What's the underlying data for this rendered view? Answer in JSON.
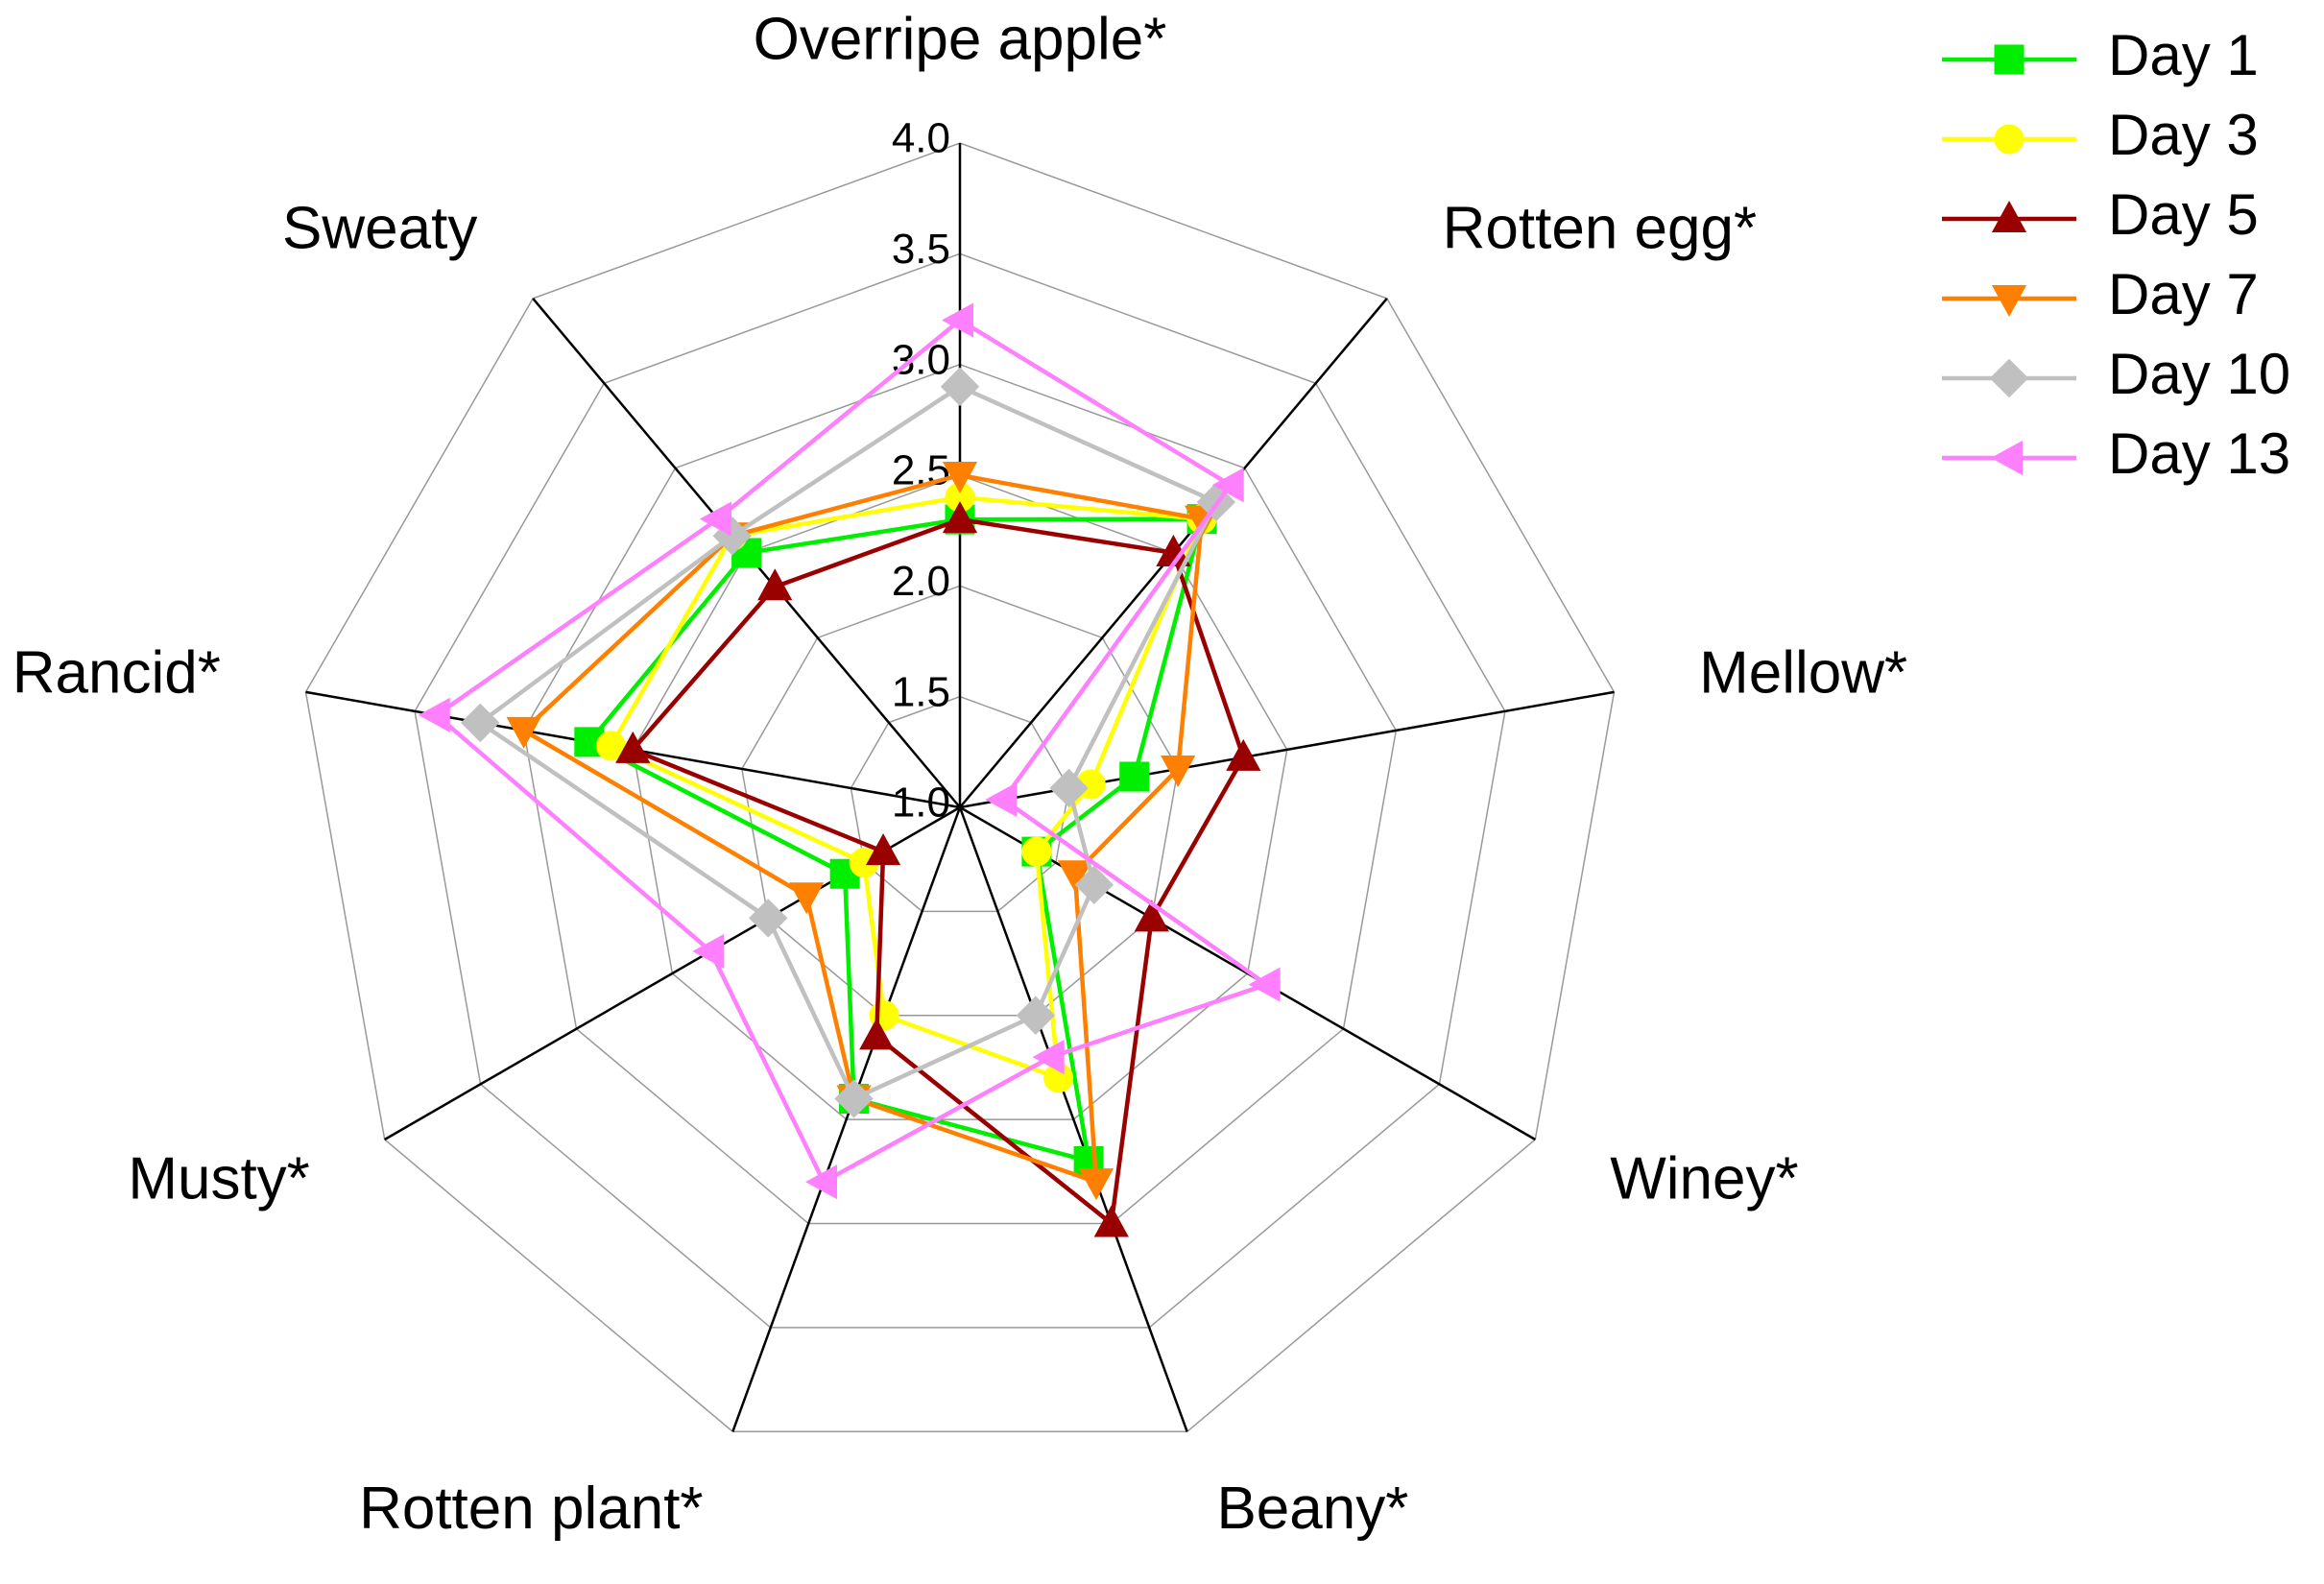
{
  "chart_data": {
    "type": "radar",
    "categories": [
      "Overripe apple*",
      "Rotten egg*",
      "Mellow*",
      "Winey*",
      "Beany*",
      "Rotten plant*",
      "Musty*",
      "Rancid*",
      "Sweaty"
    ],
    "rlim": [
      1,
      4
    ],
    "rticks": [
      {
        "value": 1,
        "label": "1.0"
      },
      {
        "value": 1.5,
        "label": "1.5"
      },
      {
        "value": 2,
        "label": "2.0"
      },
      {
        "value": 2.5,
        "label": "2.5"
      },
      {
        "value": 3,
        "label": "3.0"
      },
      {
        "value": 3.5,
        "label": "3.5"
      },
      {
        "value": 4,
        "label": "4.0"
      }
    ],
    "grid": true,
    "legend_position": "top-right",
    "series": [
      {
        "name": "Day 1",
        "color": "#00ee00",
        "marker": "square",
        "values": [
          2.3,
          2.7,
          1.8,
          1.4,
          2.7,
          2.4,
          1.6,
          2.7,
          2.5
        ]
      },
      {
        "name": "Day 3",
        "color": "#ffff00",
        "marker": "circle",
        "values": [
          2.4,
          2.7,
          1.6,
          1.4,
          2.3,
          2.0,
          1.5,
          2.6,
          2.6
        ]
      },
      {
        "name": "Day 5",
        "color": "#990000",
        "marker": "triangle-up",
        "values": [
          2.3,
          2.5,
          2.3,
          2.0,
          3.0,
          2.1,
          1.4,
          2.5,
          2.3
        ]
      },
      {
        "name": "Day 7",
        "color": "#ff8000",
        "marker": "triangle-down",
        "values": [
          2.5,
          2.7,
          2.0,
          1.6,
          2.8,
          2.4,
          1.8,
          3.0,
          2.6
        ]
      },
      {
        "name": "Day 10",
        "color": "#c0c0c0",
        "marker": "diamond",
        "values": [
          2.9,
          2.8,
          1.5,
          1.7,
          2.0,
          2.4,
          2.0,
          3.2,
          2.6
        ]
      },
      {
        "name": "Day 13",
        "color": "#ff80ff",
        "marker": "triangle-left",
        "values": [
          3.2,
          2.9,
          1.2,
          2.6,
          2.2,
          2.8,
          2.3,
          3.4,
          2.7
        ]
      }
    ]
  }
}
